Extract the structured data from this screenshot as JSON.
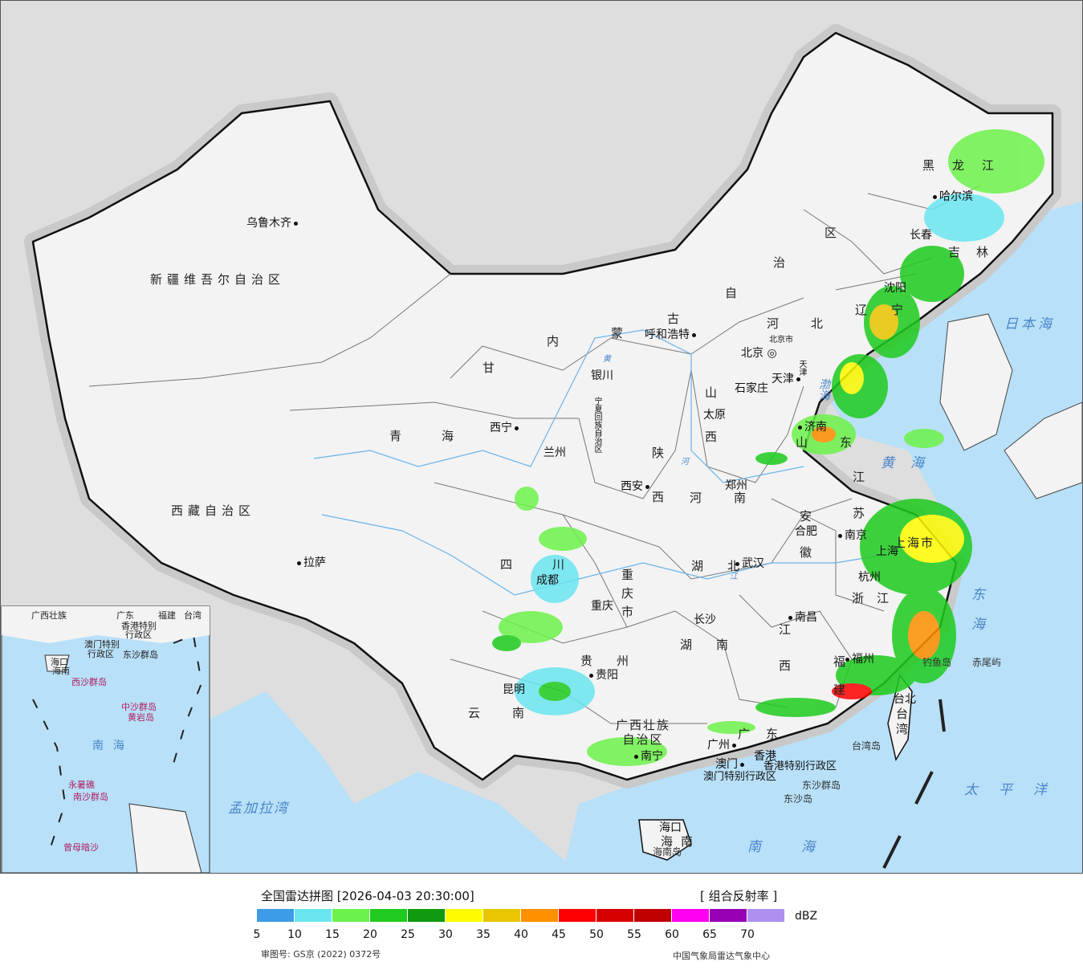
{
  "map": {
    "provinces": [
      {
        "id": "xinjiang",
        "label": "新疆维吾尔自治区"
      },
      {
        "id": "xizang",
        "label": "西藏自治区"
      },
      {
        "id": "qinghai",
        "label": "青海"
      },
      {
        "id": "gansu",
        "label": "甘"
      },
      {
        "id": "neimenggu",
        "label": "内"
      },
      {
        "id": "neimenggu2",
        "label": "蒙"
      },
      {
        "id": "neimenggu3",
        "label": "古"
      },
      {
        "id": "neimenggu4",
        "label": "自"
      },
      {
        "id": "neimenggu5",
        "label": "治"
      },
      {
        "id": "neimenggu6",
        "label": "区"
      },
      {
        "id": "heilongjiang",
        "label": "黑龙江"
      },
      {
        "id": "jilin",
        "label": "吉林"
      },
      {
        "id": "liaoning",
        "label": "辽宁"
      },
      {
        "id": "hebei",
        "label": "河北"
      },
      {
        "id": "shanxi",
        "label": "山西"
      },
      {
        "id": "shaanxi",
        "label": "陕西"
      },
      {
        "id": "ningxia",
        "label": "宁夏回族自治区"
      },
      {
        "id": "sichuan",
        "label": "四川"
      },
      {
        "id": "chongqing",
        "label": "重庆市"
      },
      {
        "id": "hubei",
        "label": "湖北"
      },
      {
        "id": "hunan",
        "label": "湖南"
      },
      {
        "id": "henan",
        "label": "河南"
      },
      {
        "id": "shandong",
        "label": "山东"
      },
      {
        "id": "jiangsu",
        "label": "江苏"
      },
      {
        "id": "anhui",
        "label": "安徽"
      },
      {
        "id": "zhejiang",
        "label": "浙江"
      },
      {
        "id": "shanghai",
        "label": "上海市"
      },
      {
        "id": "jiangxi",
        "label": "江西"
      },
      {
        "id": "fujian",
        "label": "福建"
      },
      {
        "id": "guizhou",
        "label": "贵州"
      },
      {
        "id": "yunnan",
        "label": "云南"
      },
      {
        "id": "guangxi",
        "label": "广西壮族自治区"
      },
      {
        "id": "guangdong",
        "label": "广东"
      },
      {
        "id": "hainan",
        "label": "海南"
      },
      {
        "id": "taiwan",
        "label": "台湾"
      },
      {
        "id": "hongkong",
        "label": "香港特别行政区"
      },
      {
        "id": "macau",
        "label": "澳门特别行政区"
      },
      {
        "id": "tianjin",
        "label": "天津"
      },
      {
        "id": "beijing",
        "label": "北京市"
      }
    ],
    "cities": [
      {
        "name": "乌鲁木齐"
      },
      {
        "name": "拉萨"
      },
      {
        "name": "西宁"
      },
      {
        "name": "兰州"
      },
      {
        "name": "银川"
      },
      {
        "name": "呼和浩特"
      },
      {
        "name": "北京"
      },
      {
        "name": "天津"
      },
      {
        "name": "石家庄"
      },
      {
        "name": "太原"
      },
      {
        "name": "济南"
      },
      {
        "name": "哈尔滨"
      },
      {
        "name": "长春"
      },
      {
        "name": "沈阳"
      },
      {
        "name": "西安"
      },
      {
        "name": "郑州"
      },
      {
        "name": "成都"
      },
      {
        "name": "重庆"
      },
      {
        "name": "武汉"
      },
      {
        "name": "长沙"
      },
      {
        "name": "南京"
      },
      {
        "name": "合肥"
      },
      {
        "name": "上海"
      },
      {
        "name": "杭州"
      },
      {
        "name": "南昌"
      },
      {
        "name": "福州"
      },
      {
        "name": "贵阳"
      },
      {
        "name": "昆明"
      },
      {
        "name": "南宁"
      },
      {
        "name": "广州"
      },
      {
        "name": "澳门"
      },
      {
        "name": "香港"
      },
      {
        "name": "海口"
      },
      {
        "name": "台北"
      }
    ],
    "seas": {
      "bohai": "渤海",
      "huanghai": "黄海",
      "donghai": "东海",
      "nanhai": "南海",
      "riben": "日本海",
      "taiping": "太平洋",
      "mengjiala": "孟加拉湾"
    },
    "islands": {
      "diaoyu": "钓鱼岛",
      "chiwei": "赤尾屿",
      "taiwan_dao": "台湾岛",
      "hainan_dao": "海南岛",
      "dongsha_qd": "东沙群岛",
      "dongsha_dao": "东沙岛"
    },
    "rivers": {
      "huang": "黄",
      "he": "河",
      "jiang": "江"
    },
    "inset": {
      "labels": [
        "广西壮族",
        "广东",
        "福建",
        "台湾",
        "香港特别",
        "澳门特别",
        "行政区",
        "行政区",
        "东沙群岛",
        "海口",
        "海南",
        "西沙群岛",
        "中沙群岛",
        "黄岩岛",
        "南海",
        "永暑礁",
        "南沙群岛",
        "曾母暗沙"
      ]
    }
  },
  "legend": {
    "title": "全国雷达拼图 [2026-04-03 20:30:00]",
    "product": "[ 组合反射率 ]",
    "unit": "dBZ",
    "colors": [
      "#3d9be8",
      "#6ae6f0",
      "#6cf24a",
      "#1ecb1e",
      "#0f9a0f",
      "#fffc00",
      "#e8c500",
      "#ff9000",
      "#ff0000",
      "#d70000",
      "#c00000",
      "#ff00f0",
      "#9600b4",
      "#ad90f0"
    ],
    "ticks": [
      "5",
      "10",
      "15",
      "20",
      "25",
      "30",
      "35",
      "40",
      "45",
      "50",
      "55",
      "60",
      "65",
      "70"
    ],
    "approval": "审图号: GS京 (2022) 0372号",
    "source": "中国气象局雷达气象中心"
  }
}
